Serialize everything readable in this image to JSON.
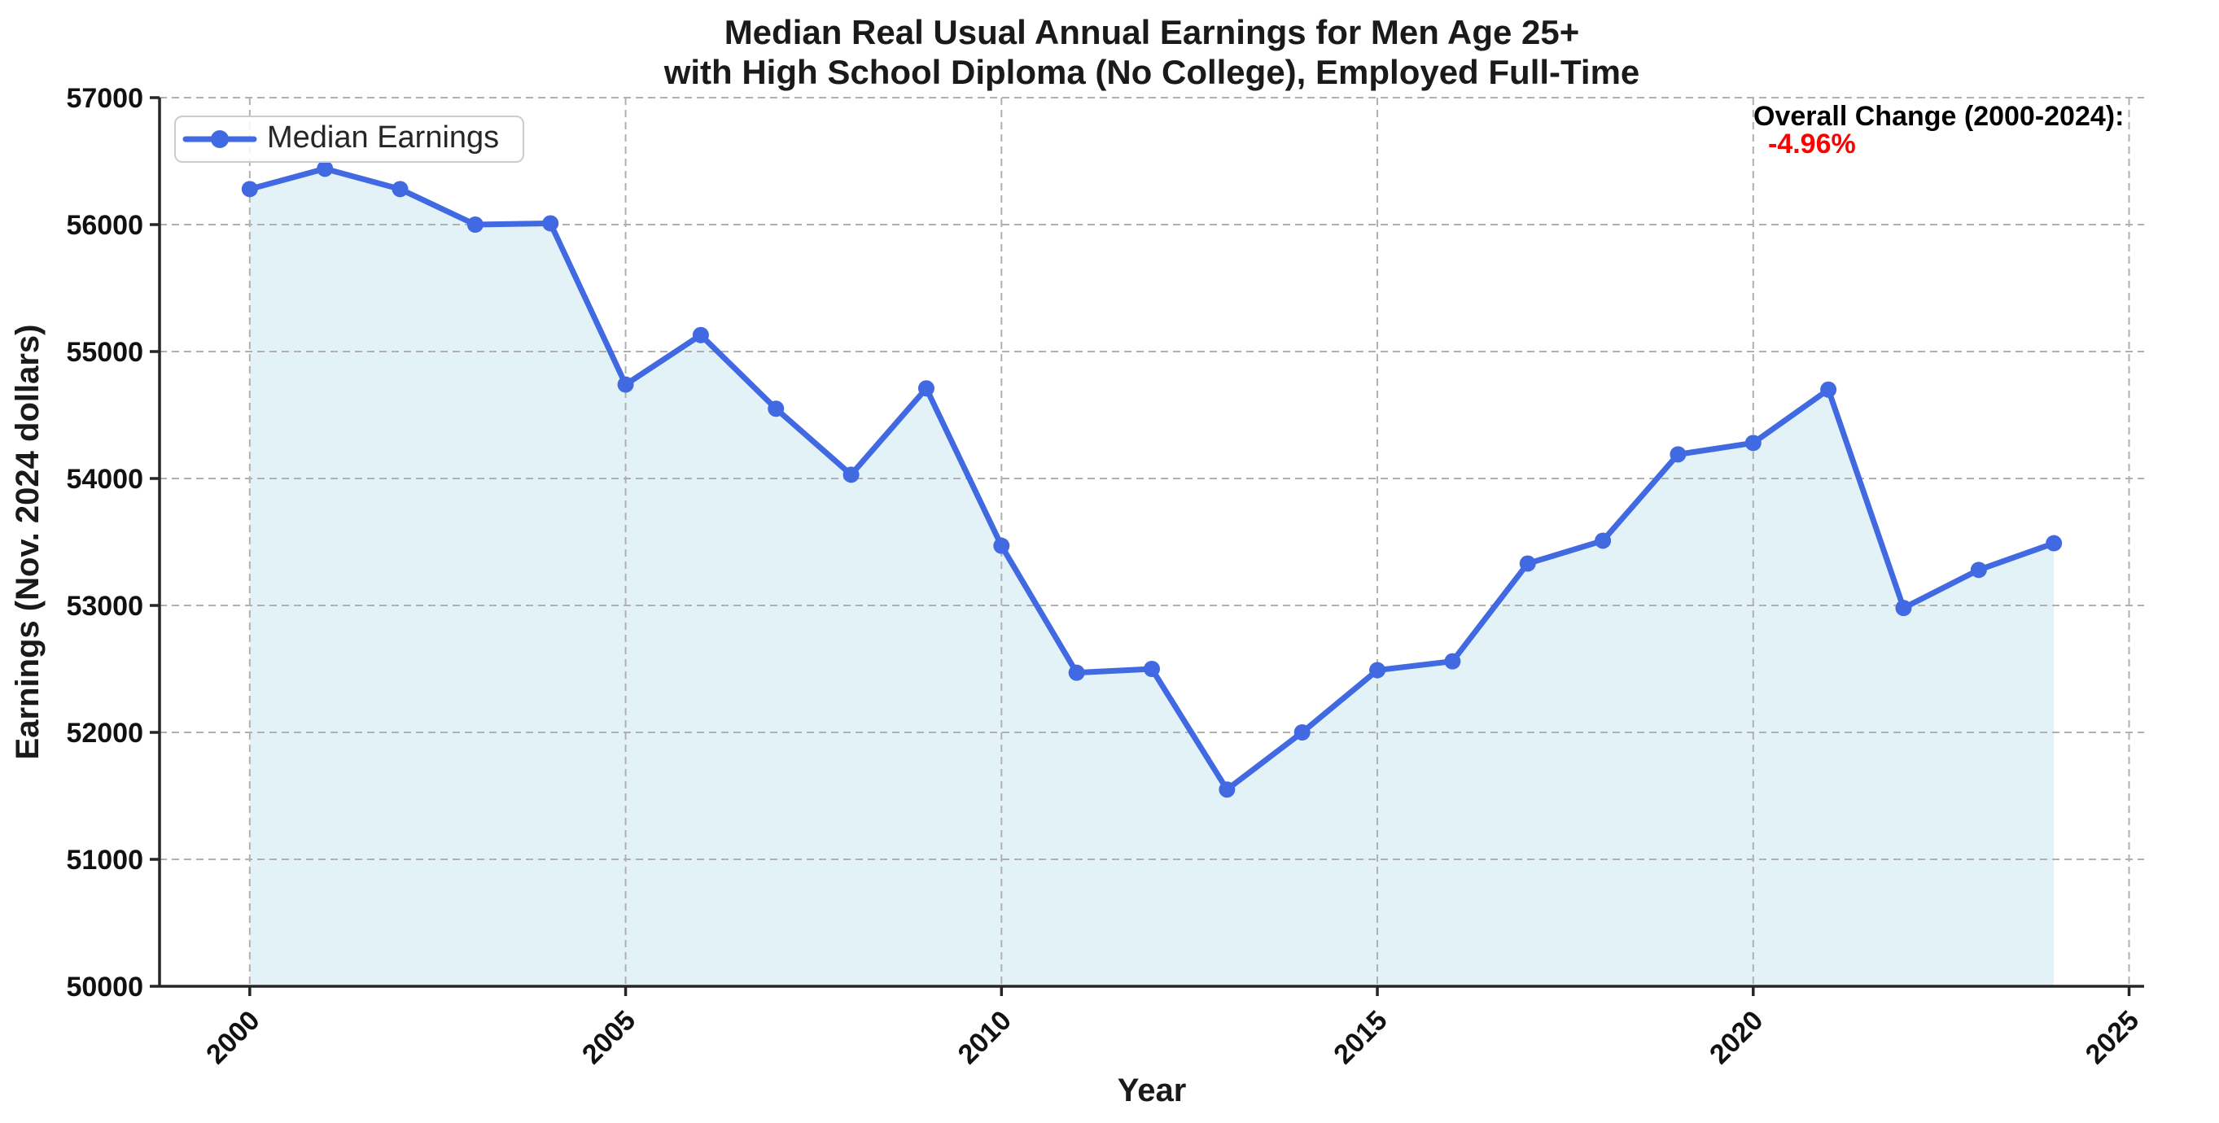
{
  "chart_data": {
    "type": "line",
    "title_line1": "Median Real Usual Annual Earnings for Men Age 25+",
    "title_line2": "with High School Diploma (No College), Employed Full-Time",
    "xlabel": "Year",
    "ylabel": "Earnings (Nov. 2024 dollars)",
    "xlim": [
      1998.8,
      2025.2
    ],
    "ylim": [
      50000,
      57000
    ],
    "x_ticks": [
      2000,
      2005,
      2010,
      2015,
      2020,
      2025
    ],
    "y_ticks": [
      50000,
      51000,
      52000,
      53000,
      54000,
      55000,
      56000,
      57000
    ],
    "grid": true,
    "legend": {
      "position": "upper-left",
      "entries": [
        "Median Earnings"
      ]
    },
    "annotation": {
      "heading": "Overall Change (2000-2024):",
      "value": "-4.96%"
    },
    "series": [
      {
        "name": "Median Earnings",
        "x": [
          2000,
          2001,
          2002,
          2003,
          2004,
          2005,
          2006,
          2007,
          2008,
          2009,
          2010,
          2011,
          2012,
          2013,
          2014,
          2015,
          2016,
          2017,
          2018,
          2019,
          2020,
          2021,
          2022,
          2023,
          2024
        ],
        "values": [
          56280,
          56440,
          56280,
          56000,
          56010,
          54740,
          55130,
          54550,
          54030,
          54710,
          53470,
          52470,
          52500,
          51550,
          52000,
          52490,
          52560,
          53330,
          53510,
          54190,
          54280,
          54700,
          52980,
          53280,
          53490
        ]
      }
    ],
    "colors": {
      "line": "#4169e1",
      "marker": "#4169e1",
      "fill": "rgba(173,216,230,0.34)",
      "grid": "#b0b0b0",
      "annotation_value": "#ff0000",
      "text": "#1a1a1a"
    }
  }
}
